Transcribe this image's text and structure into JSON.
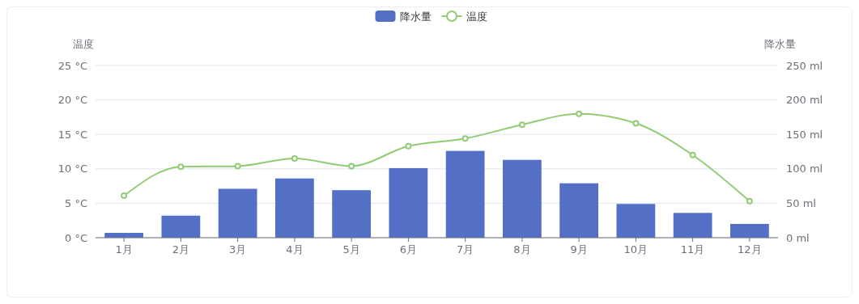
{
  "chart_data": {
    "type": "bar",
    "categories": [
      "1月",
      "2月",
      "3月",
      "4月",
      "5月",
      "6月",
      "7月",
      "8月",
      "9月",
      "10月",
      "11月",
      "12月"
    ],
    "series": [
      {
        "name": "降水量",
        "axis": "y2",
        "color": "#5470c6",
        "values": [
          7,
          32,
          71,
          86,
          69,
          101,
          126,
          113,
          79,
          49,
          36,
          20
        ]
      },
      {
        "name": "温度",
        "type": "line",
        "color": "#91cc75",
        "marker": "circle",
        "values": [
          6.1,
          10.3,
          10.4,
          11.5,
          10.4,
          13.3,
          14.4,
          16.4,
          18.0,
          16.6,
          12.0,
          5.3
        ]
      }
    ],
    "ylabel": "温度",
    "y2label": "降水量",
    "ylim": [
      0,
      25
    ],
    "yticks": [
      {
        "value": 0,
        "label": "0 °C"
      },
      {
        "value": 5,
        "label": "5 °C"
      },
      {
        "value": 10,
        "label": "10 °C"
      },
      {
        "value": 15,
        "label": "15 °C"
      },
      {
        "value": 20,
        "label": "20 °C"
      },
      {
        "value": 25,
        "label": "25 °C"
      }
    ],
    "y2lim": [
      0,
      250
    ],
    "y2ticks": [
      {
        "value": 0,
        "label": "0 ml"
      },
      {
        "value": 50,
        "label": "50 ml"
      },
      {
        "value": 100,
        "label": "100 ml"
      },
      {
        "value": 150,
        "label": "150 ml"
      },
      {
        "value": 200,
        "label": "200 ml"
      },
      {
        "value": 250,
        "label": "250 ml"
      }
    ],
    "grid": "y",
    "legend": "top"
  }
}
